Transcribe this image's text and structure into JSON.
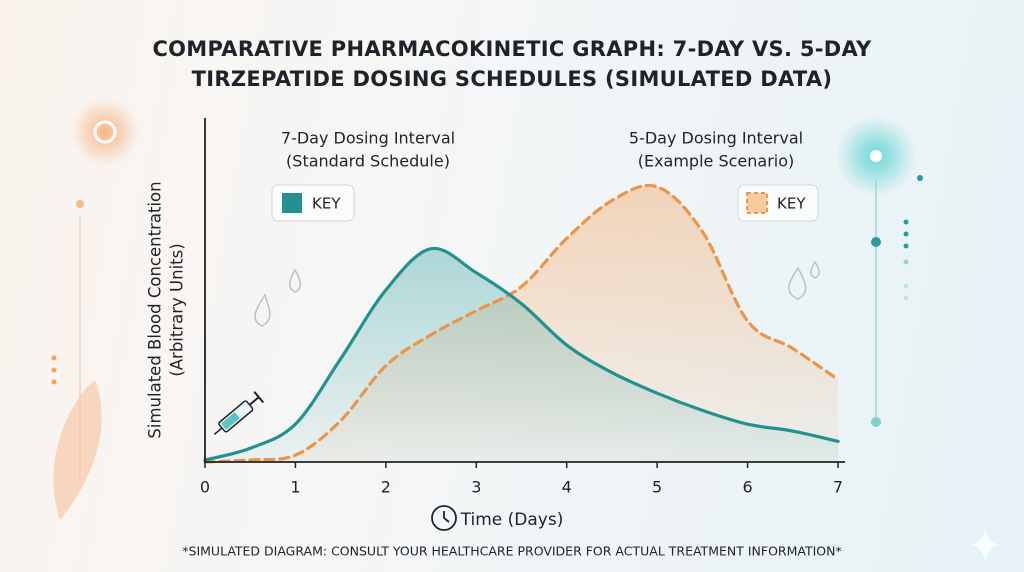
{
  "chart_data": {
    "type": "area",
    "title": "Comparative Pharmacokinetic Graph: 7-Day vs. 5-Day Tirzepatide Dosing Schedules (Simulated Data)",
    "x_label": "Time (Days)",
    "y_label": [
      "Simulated Blood Concentration",
      "(Arbitrary Units)"
    ],
    "footnote": "*SIMULATED DIAGRAM: CONSULT YOUR HEALTHCARE PROVIDER FOR ACTUAL TREATMENT INFORMATION*",
    "x": [
      0,
      0.5,
      1,
      1.5,
      2,
      2.5,
      3,
      3.5,
      4,
      4.5,
      5,
      5.5,
      6,
      6.5,
      7
    ],
    "xlim": [
      0,
      7
    ],
    "xticks": [
      0,
      1,
      2,
      3,
      4,
      5,
      6,
      7
    ],
    "ylim": [
      0,
      100
    ],
    "series": [
      {
        "name": "7-Day Dosing Interval",
        "note": "(Standard Schedule)",
        "key_label": "KEY",
        "color": "#23918f",
        "dashed": false,
        "values": [
          0.6,
          4,
          11,
          30,
          50,
          62,
          55,
          46,
          34,
          26,
          20,
          15,
          11,
          9,
          6
        ]
      },
      {
        "name": "5-Day Dosing Interval",
        "note": "(Example Scenario)",
        "key_label": "KEY",
        "color": "#ec9448",
        "dashed": true,
        "values": [
          0,
          0.6,
          2,
          12,
          28,
          37,
          44,
          51,
          65,
          76,
          80,
          67,
          41,
          33,
          24
        ]
      }
    ]
  }
}
